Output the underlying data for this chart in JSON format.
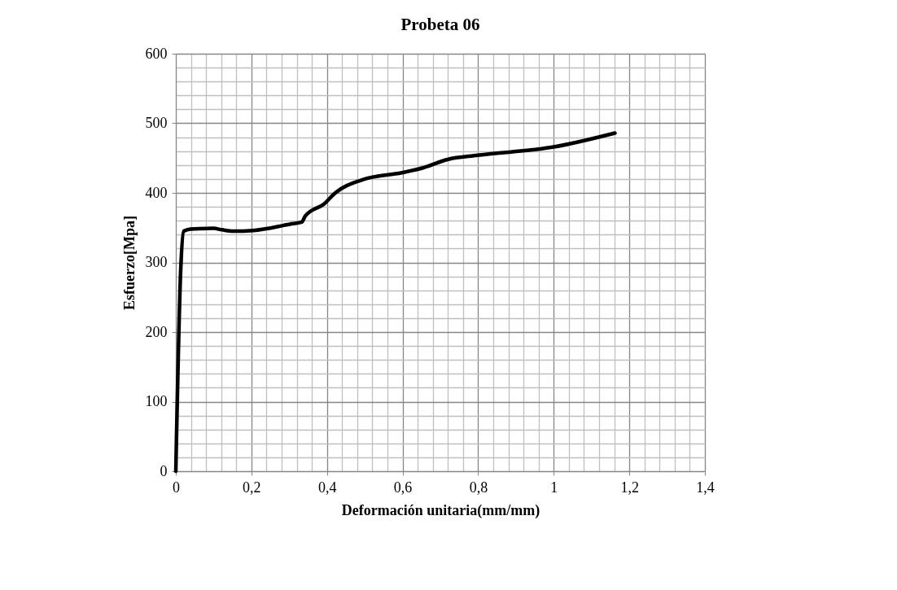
{
  "chart_data": {
    "type": "line",
    "title": "Probeta 06",
    "xlabel": "Deformación unitaria(mm/mm)",
    "ylabel": "Esfuerzo[Mpa]",
    "x": [
      0,
      0.013,
      0.021,
      0.039,
      0.099,
      0.122,
      0.151,
      0.205,
      0.302,
      0.333,
      0.343,
      0.392,
      0.422,
      0.494,
      0.598,
      0.654,
      0.719,
      0.799,
      1.0,
      1.162
    ],
    "series": [
      {
        "color": "#000000",
        "values": [
          0,
          290,
          345,
          348,
          349,
          347,
          345,
          346,
          355,
          358,
          367,
          384,
          400,
          419,
          429,
          436,
          448,
          454,
          466,
          486
        ]
      }
    ],
    "xlim": [
      0,
      1.4
    ],
    "ylim": [
      0,
      600
    ],
    "xticks": [
      0,
      {
        "value": 0.04,
        "label": null
      },
      {
        "value": 0.08,
        "label": null
      },
      {
        "value": 0.12,
        "label": null
      },
      {
        "value": 0.16,
        "label": null
      },
      {
        "value": 0.2,
        "label": "0,2"
      },
      {
        "value": 0.24,
        "label": null
      },
      {
        "value": 0.28,
        "label": null
      },
      {
        "value": 0.32,
        "label": null
      },
      {
        "value": 0.36,
        "label": null
      },
      {
        "value": 0.4,
        "label": "0,4"
      },
      {
        "value": 0.44,
        "label": null
      },
      {
        "value": 0.48,
        "label": null
      },
      {
        "value": 0.52,
        "label": null
      },
      {
        "value": 0.56,
        "label": null
      },
      {
        "value": 0.6,
        "label": "0,6"
      },
      {
        "value": 0.64,
        "label": null
      },
      {
        "value": 0.68,
        "label": null
      },
      {
        "value": 0.72,
        "label": null
      },
      {
        "value": 0.76,
        "label": null
      },
      {
        "value": 0.8,
        "label": "0,8"
      },
      {
        "value": 0.84,
        "label": null
      },
      {
        "value": 0.88,
        "label": null
      },
      {
        "value": 0.92,
        "label": null
      },
      {
        "value": 0.96,
        "label": null
      },
      1,
      {
        "value": 1.04,
        "label": null
      },
      {
        "value": 1.08,
        "label": null
      },
      {
        "value": 1.12,
        "label": null
      },
      {
        "value": 1.16,
        "label": null
      },
      {
        "value": 1.2,
        "label": "1,2"
      },
      {
        "value": 1.24,
        "label": null
      },
      {
        "value": 1.28,
        "label": null
      },
      {
        "value": 1.32,
        "label": null
      },
      {
        "value": 1.36,
        "label": null
      },
      {
        "value": 1.4,
        "label": "1,4"
      }
    ],
    "yticks": [
      0,
      {
        "value": 20,
        "label": null
      },
      {
        "value": 40,
        "label": null
      },
      {
        "value": 60,
        "label": null
      },
      {
        "value": 80,
        "label": null
      },
      100,
      {
        "value": 120,
        "label": null
      },
      {
        "value": 140,
        "label": null
      },
      {
        "value": 160,
        "label": null
      },
      {
        "value": 180,
        "label": null
      },
      200,
      {
        "value": 220,
        "label": null
      },
      {
        "value": 240,
        "label": null
      },
      {
        "value": 260,
        "label": null
      },
      {
        "value": 280,
        "label": null
      },
      300,
      {
        "value": 320,
        "label": null
      },
      {
        "value": 340,
        "label": null
      },
      {
        "value": 360,
        "label": null
      },
      {
        "value": 380,
        "label": null
      },
      400,
      {
        "value": 420,
        "label": null
      },
      {
        "value": 440,
        "label": null
      },
      {
        "value": 460,
        "label": null
      },
      {
        "value": 480,
        "label": null
      },
      500,
      {
        "value": 520,
        "label": null
      },
      {
        "value": 540,
        "label": null
      },
      {
        "value": 560,
        "label": null
      },
      {
        "value": 580,
        "label": null
      },
      600
    ],
    "grid": true,
    "marker": "none",
    "line_style": "solid"
  }
}
